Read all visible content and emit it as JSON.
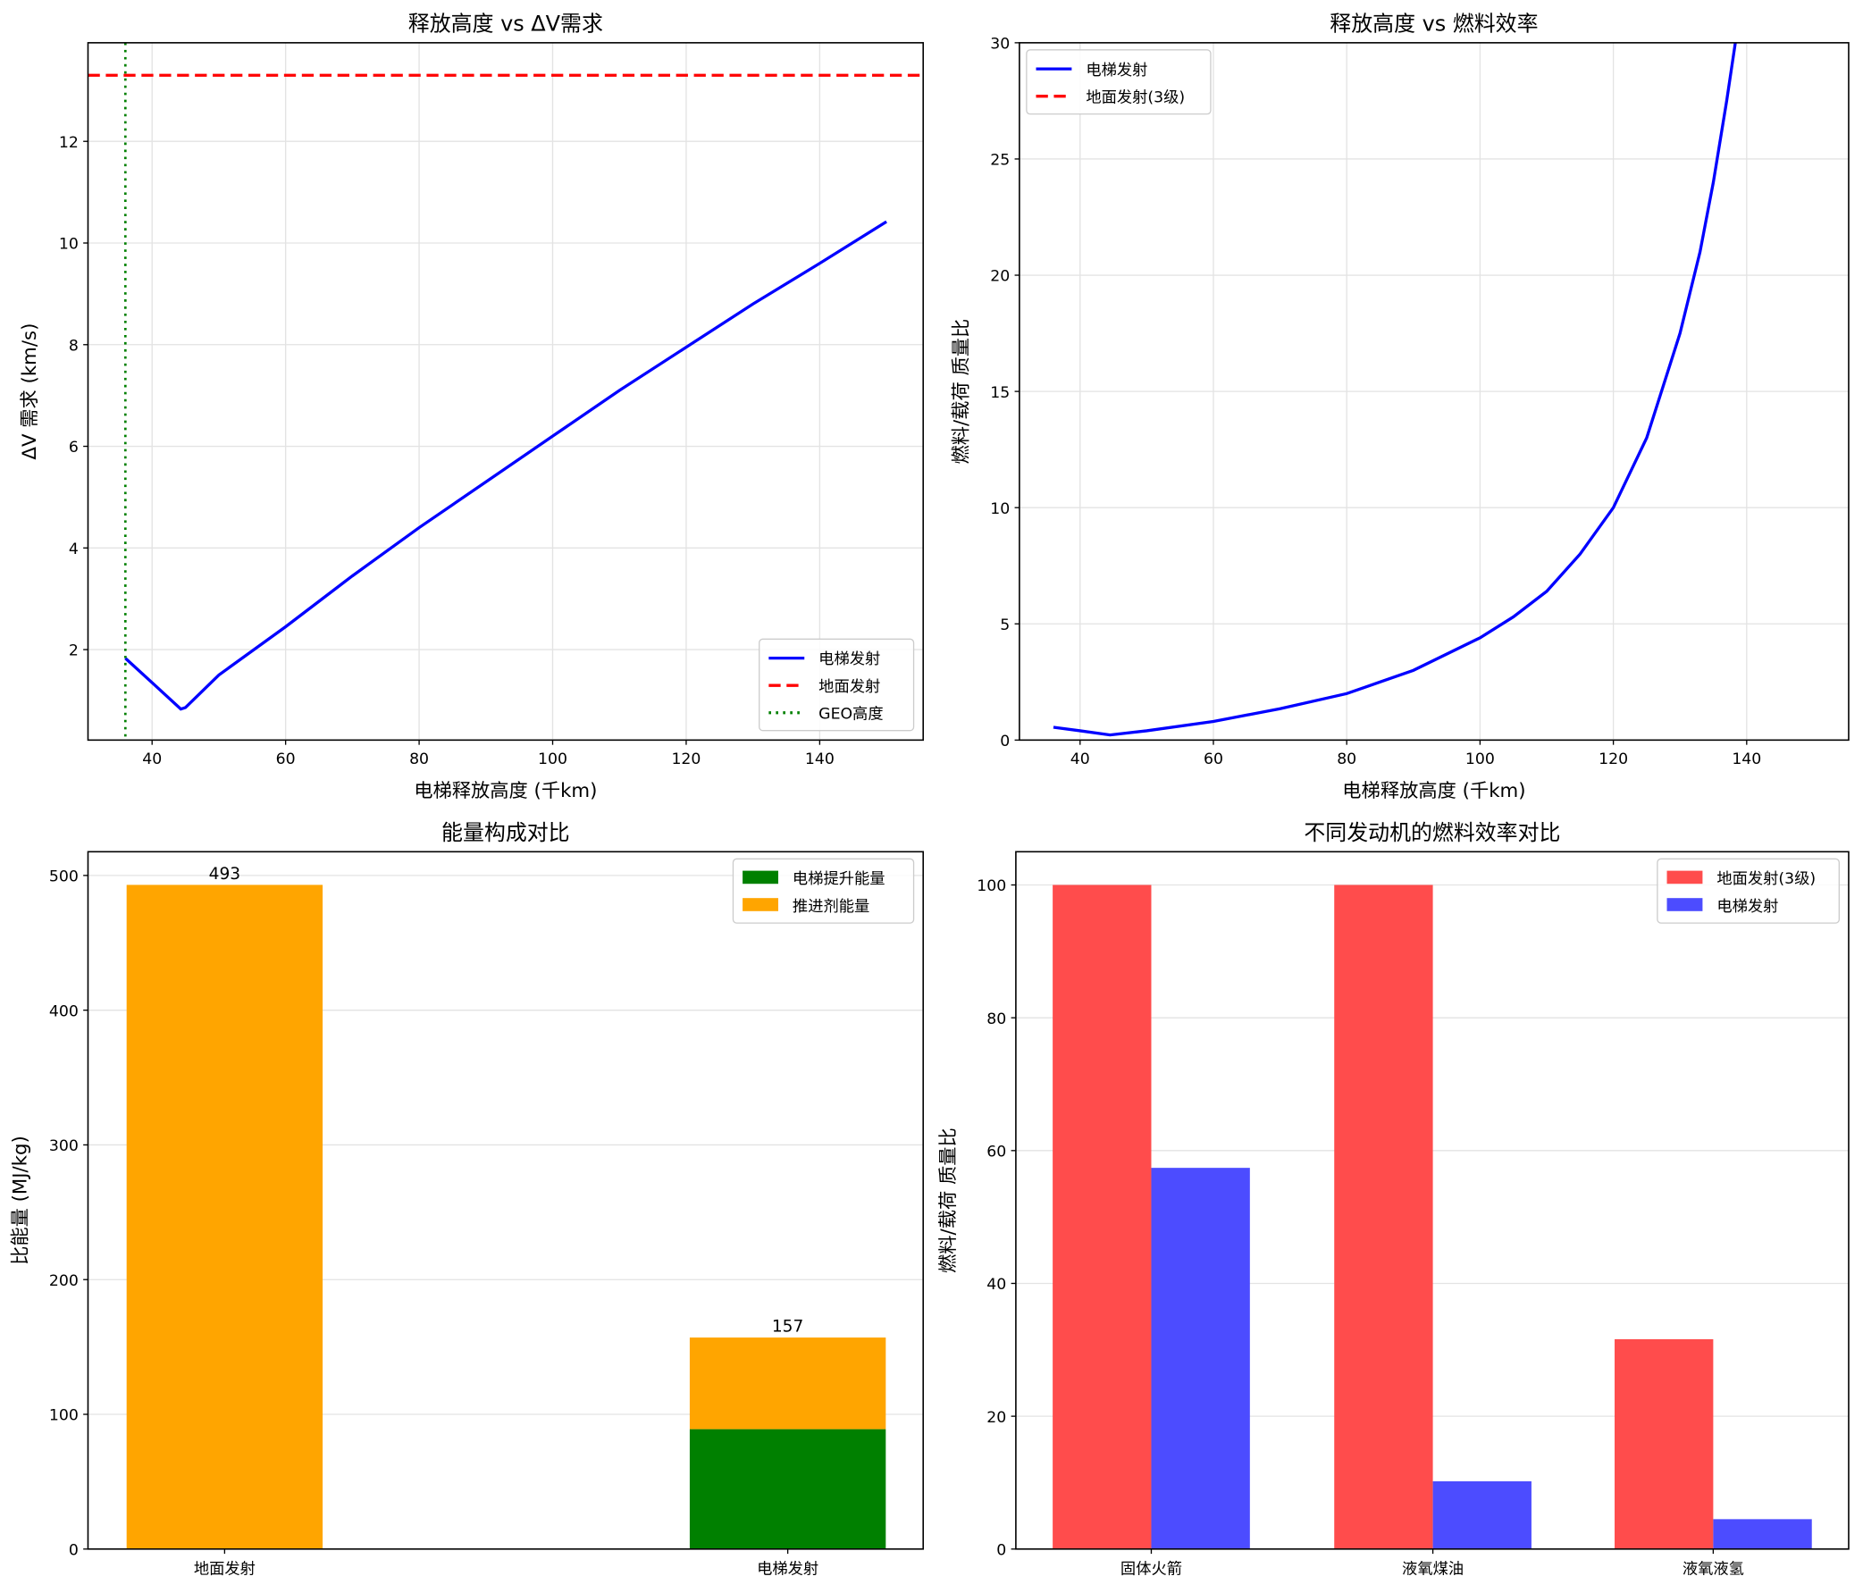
{
  "chart_data": [
    {
      "type": "line",
      "title": "释放高度 vs ΔV需求",
      "xlabel": "电梯释放高度 (千km)",
      "ylabel": "ΔV 需求 (km/s)",
      "xlim": [
        30.4,
        155.5
      ],
      "ylim": [
        0.22,
        13.94
      ],
      "xticks": [
        40,
        60,
        80,
        100,
        120,
        140
      ],
      "yticks": [
        2,
        4,
        6,
        8,
        10,
        12
      ],
      "grid": true,
      "legend": "lower-right",
      "series": [
        {
          "name": "电梯发射",
          "color": "#0000ff",
          "style": "solid",
          "x": [
            36,
            40,
            44.3,
            45,
            50,
            60,
            70,
            80,
            90,
            100,
            110,
            120,
            130,
            140,
            150
          ],
          "y": [
            1.83,
            1.35,
            0.83,
            0.86,
            1.5,
            2.45,
            3.45,
            4.4,
            5.3,
            6.2,
            7.1,
            7.95,
            8.8,
            9.6,
            10.42
          ]
        },
        {
          "name": "地面发射",
          "color": "#ff0000",
          "style": "dashed",
          "hline": 13.3
        },
        {
          "name": "GEO高度",
          "color": "#008000",
          "style": "dotted",
          "vline": 36
        }
      ]
    },
    {
      "type": "line",
      "title": "释放高度 vs 燃料效率",
      "xlabel": "电梯释放高度 (千km)",
      "ylabel": "燃料/载荷 质量比",
      "xlim": [
        30.9,
        155.3
      ],
      "ylim": [
        0,
        30
      ],
      "xticks": [
        40,
        60,
        80,
        100,
        120,
        140
      ],
      "yticks": [
        0,
        5,
        10,
        15,
        20,
        25,
        30
      ],
      "grid": true,
      "legend": "upper-left",
      "series": [
        {
          "name": "电梯发射",
          "color": "#0000ff",
          "style": "solid",
          "x": [
            36,
            40,
            44.5,
            50,
            60,
            70,
            80,
            90,
            100,
            105,
            110,
            115,
            120,
            125,
            130,
            133,
            135,
            137,
            138.3
          ],
          "y": [
            0.55,
            0.4,
            0.22,
            0.4,
            0.8,
            1.35,
            2.0,
            3.0,
            4.4,
            5.3,
            6.4,
            8.0,
            10,
            13,
            17.5,
            21,
            24,
            27.5,
            30
          ]
        },
        {
          "name": "地面发射(3级)",
          "color": "#ff0000",
          "style": "dashed",
          "x": [],
          "y": []
        }
      ]
    },
    {
      "type": "bar",
      "stacked": true,
      "title": "能量构成对比",
      "xlabel": "",
      "ylabel": "比能量 (MJ/kg)",
      "categories": [
        "地面发射",
        "电梯发射"
      ],
      "ylim": [
        0,
        517.6
      ],
      "yticks": [
        0,
        100,
        200,
        300,
        400,
        500
      ],
      "grid": true,
      "legend": "upper-right",
      "series": [
        {
          "name": "电梯提升能量",
          "color": "#008000",
          "values": [
            0,
            89
          ]
        },
        {
          "name": "推进剂能量",
          "color": "#ffa500",
          "values": [
            493,
            68
          ]
        }
      ],
      "totals": [
        "493",
        "157"
      ]
    },
    {
      "type": "bar",
      "title": "不同发动机的燃料效率对比",
      "xlabel": "",
      "ylabel": "燃料/载荷 质量比",
      "categories": [
        "固体火箭",
        "液氧煤油",
        "液氧液氢"
      ],
      "ylim": [
        0,
        105
      ],
      "yticks": [
        0,
        20,
        40,
        60,
        80,
        100
      ],
      "grid": true,
      "legend": "upper-right",
      "series": [
        {
          "name": "地面发射(3级)",
          "color": "#ff4c4c",
          "values": [
            100,
            100,
            31.6
          ]
        },
        {
          "name": "电梯发射",
          "color": "#4c4cff",
          "values": [
            57.4,
            10.2,
            4.5
          ]
        }
      ]
    }
  ]
}
